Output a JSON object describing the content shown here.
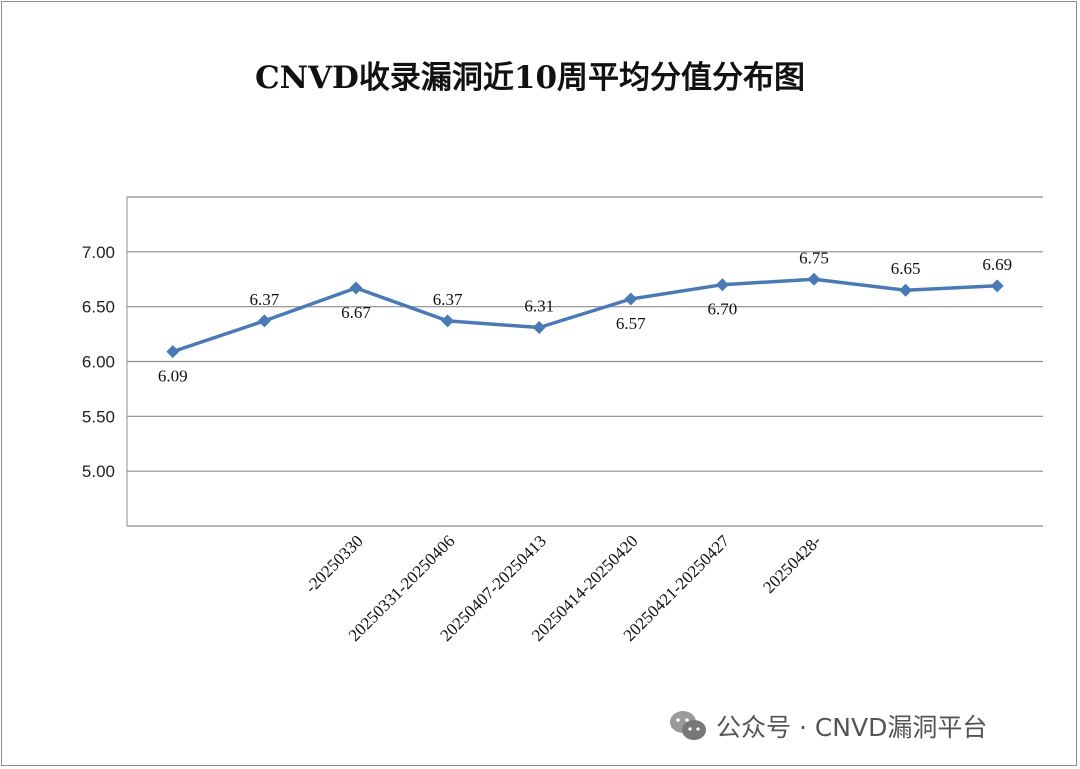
{
  "chart_data": {
    "type": "line",
    "title": "CNVD收录漏洞近10周平均分值分布图",
    "categories": [
      "",
      "",
      "-20250330",
      "20250331-20250406",
      "20250407-20250413",
      "20250414-20250420",
      "20250421-20250427",
      "20250428-",
      "",
      ""
    ],
    "values": [
      6.09,
      6.37,
      6.67,
      6.37,
      6.31,
      6.57,
      6.7,
      6.75,
      6.65,
      6.69
    ],
    "value_labels": [
      "6.09",
      "6.37",
      "6.67",
      "6.37",
      "6.31",
      "6.57",
      "6.70",
      "6.75",
      "6.65",
      "6.69"
    ],
    "label_position": [
      "below",
      "above",
      "below",
      "above",
      "above",
      "below",
      "below",
      "above",
      "above",
      "above"
    ],
    "y_ticks": [
      5.0,
      5.5,
      6.0,
      6.5,
      7.0
    ],
    "y_tick_labels": [
      "5.00",
      "5.50",
      "6.00",
      "6.50",
      "7.00"
    ],
    "ylim": [
      4.5,
      7.5
    ],
    "grid": true,
    "line_color": "#4a7ab5",
    "xlabel": "",
    "ylabel": ""
  },
  "watermark": {
    "text": "公众号 · CNVD漏洞平台",
    "icon": "wechat-icon"
  }
}
